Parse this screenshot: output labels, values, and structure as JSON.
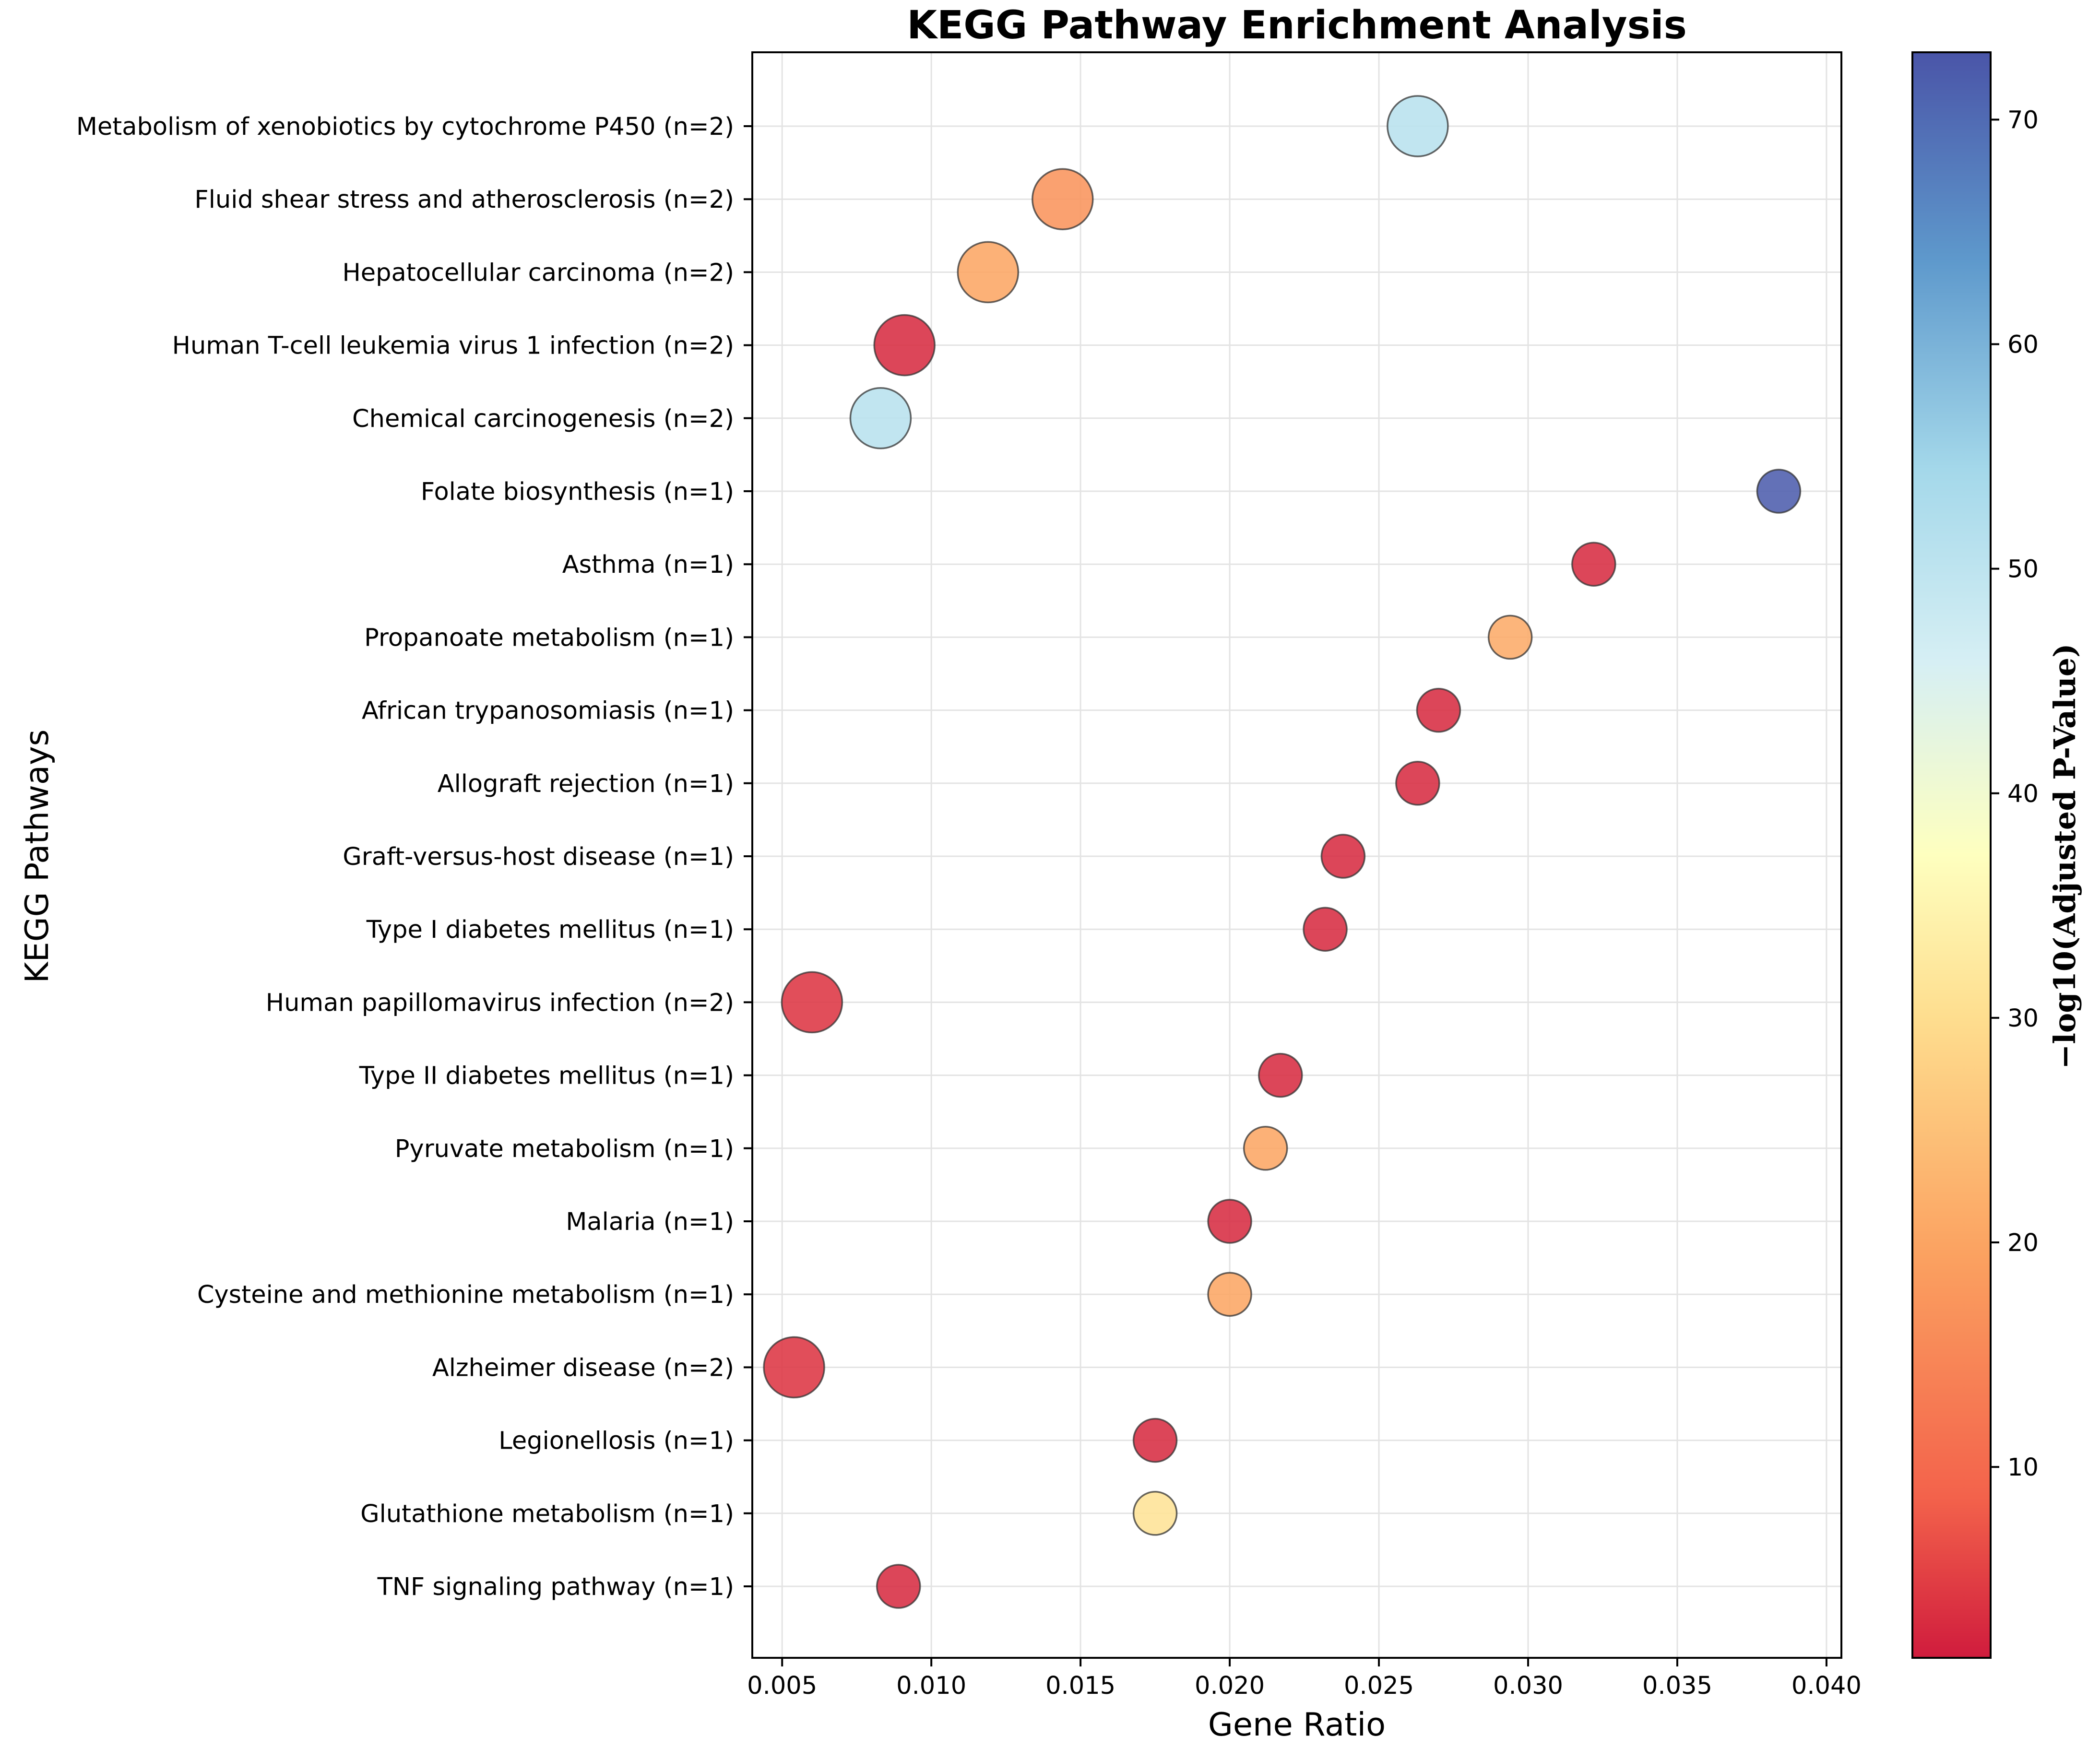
{
  "chart_data": {
    "type": "scatter",
    "title": "KEGG Pathway Enrichment Analysis",
    "xlabel": "Gene Ratio",
    "ylabel": "KEGG Pathways",
    "xlim": [
      0.004,
      0.0405
    ],
    "xticks": [
      "0.005",
      "0.010",
      "0.015",
      "0.020",
      "0.025",
      "0.030",
      "0.035",
      "0.040"
    ],
    "grid": true,
    "size_encoding": "gene count (n)",
    "colorbar": {
      "label": "−log10(Adjusted P-Value)",
      "range": [
        1.5,
        73
      ],
      "ticks": [
        "10",
        "20",
        "30",
        "40",
        "50",
        "60",
        "70"
      ],
      "colormap": "RdYlBu"
    },
    "points": [
      {
        "pathway": "Metabolism of xenobiotics by cytochrome P450 (n=2)",
        "n": 2,
        "gene_ratio": 0.0263,
        "neg_log10_padj": 51
      },
      {
        "pathway": "Fluid shear stress and atherosclerosis (n=2)",
        "n": 2,
        "gene_ratio": 0.0144,
        "neg_log10_padj": 17
      },
      {
        "pathway": "Hepatocellular carcinoma (n=2)",
        "n": 2,
        "gene_ratio": 0.0119,
        "neg_log10_padj": 20
      },
      {
        "pathway": "Human T-cell leukemia virus 1 infection (n=2)",
        "n": 2,
        "gene_ratio": 0.0091,
        "neg_log10_padj": 3
      },
      {
        "pathway": "Chemical carcinogenesis (n=2)",
        "n": 2,
        "gene_ratio": 0.0083,
        "neg_log10_padj": 51
      },
      {
        "pathway": "Folate biosynthesis (n=1)",
        "n": 1,
        "gene_ratio": 0.0384,
        "neg_log10_padj": 72
      },
      {
        "pathway": "Asthma (n=1)",
        "n": 1,
        "gene_ratio": 0.0322,
        "neg_log10_padj": 3
      },
      {
        "pathway": "Propanoate metabolism (n=1)",
        "n": 1,
        "gene_ratio": 0.0294,
        "neg_log10_padj": 21
      },
      {
        "pathway": "African trypanosomiasis (n=1)",
        "n": 1,
        "gene_ratio": 0.027,
        "neg_log10_padj": 3
      },
      {
        "pathway": "Allograft rejection (n=1)",
        "n": 1,
        "gene_ratio": 0.0263,
        "neg_log10_padj": 3
      },
      {
        "pathway": "Graft-versus-host disease (n=1)",
        "n": 1,
        "gene_ratio": 0.0238,
        "neg_log10_padj": 3
      },
      {
        "pathway": "Type I diabetes mellitus (n=1)",
        "n": 1,
        "gene_ratio": 0.0232,
        "neg_log10_padj": 3
      },
      {
        "pathway": "Human papillomavirus infection (n=2)",
        "n": 2,
        "gene_ratio": 0.006,
        "neg_log10_padj": 4
      },
      {
        "pathway": "Type II diabetes mellitus (n=1)",
        "n": 1,
        "gene_ratio": 0.0217,
        "neg_log10_padj": 3
      },
      {
        "pathway": "Pyruvate metabolism (n=1)",
        "n": 1,
        "gene_ratio": 0.0212,
        "neg_log10_padj": 20
      },
      {
        "pathway": "Malaria (n=1)",
        "n": 1,
        "gene_ratio": 0.02,
        "neg_log10_padj": 3
      },
      {
        "pathway": "Cysteine and methionine metabolism (n=1)",
        "n": 1,
        "gene_ratio": 0.02,
        "neg_log10_padj": 20
      },
      {
        "pathway": "Alzheimer disease (n=2)",
        "n": 2,
        "gene_ratio": 0.0054,
        "neg_log10_padj": 4
      },
      {
        "pathway": "Legionellosis (n=1)",
        "n": 1,
        "gene_ratio": 0.0175,
        "neg_log10_padj": 3
      },
      {
        "pathway": "Glutathione metabolism (n=1)",
        "n": 1,
        "gene_ratio": 0.0175,
        "neg_log10_padj": 31
      },
      {
        "pathway": "TNF signaling pathway (n=1)",
        "n": 1,
        "gene_ratio": 0.0089,
        "neg_log10_padj": 3
      }
    ]
  }
}
